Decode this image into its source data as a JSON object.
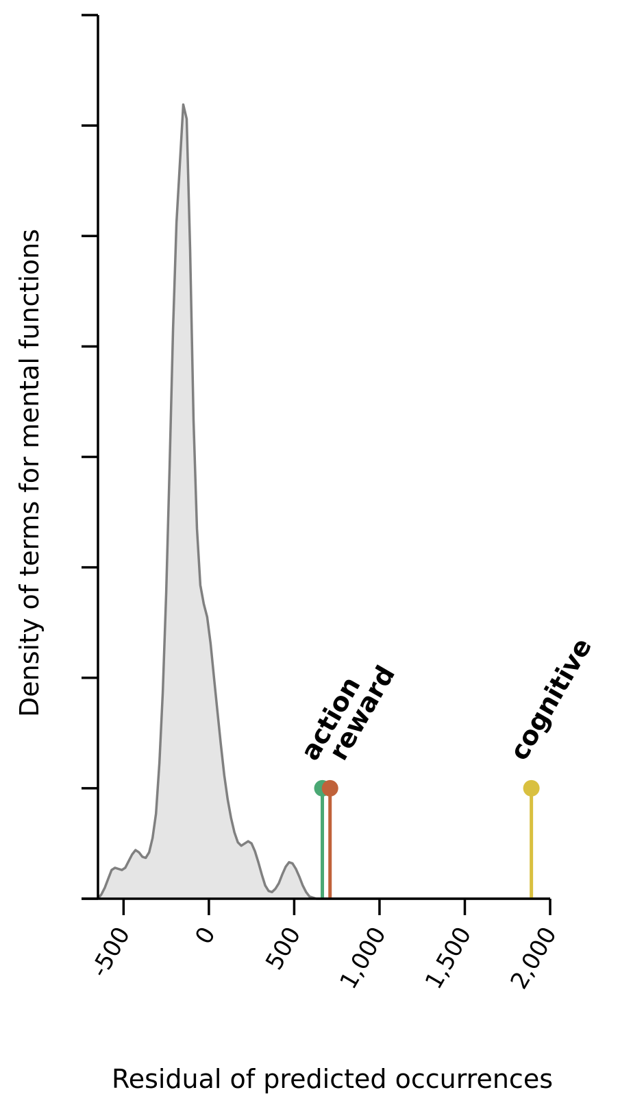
{
  "chart_data": {
    "type": "area",
    "xlabel": "Residual of predicted occurrences",
    "ylabel": "Density of terms for mental functions",
    "xlim": [
      -650,
      2000
    ],
    "ylim": [
      0,
      8
    ],
    "x_ticks": [
      -500,
      0,
      500,
      1000,
      1500,
      2000
    ],
    "x_tick_labels": [
      "-500",
      "0",
      "500",
      "1,000",
      "1,500",
      "2,000"
    ],
    "y_ticks": [
      0,
      1,
      2,
      3,
      4,
      5,
      6,
      7,
      8
    ],
    "grid": false,
    "series": [
      {
        "x": [
          -650,
          -630,
          -610,
          -590,
          -570,
          -550,
          -530,
          -510,
          -490,
          -470,
          -450,
          -430,
          -410,
          -390,
          -370,
          -350,
          -330,
          -310,
          -290,
          -270,
          -250,
          -230,
          -210,
          -190,
          -170,
          -150,
          -130,
          -110,
          -90,
          -70,
          -50,
          -30,
          -10,
          10,
          30,
          50,
          70,
          90,
          110,
          130,
          150,
          170,
          190,
          210,
          230,
          250,
          270,
          290,
          310,
          330,
          350,
          370,
          390,
          410,
          430,
          450,
          470,
          490,
          510,
          530,
          550,
          570,
          590,
          610,
          630,
          650,
          670,
          690,
          710,
          730,
          750,
          770,
          790,
          810,
          850,
          900,
          1000,
          1200,
          1400,
          1600,
          1700,
          1750,
          1790,
          1810,
          1830,
          1850,
          1870,
          1890,
          1910,
          1930,
          1950,
          1970,
          1990,
          2000
        ],
        "y": [
          0.0,
          0.04,
          0.1,
          0.18,
          0.26,
          0.28,
          0.27,
          0.26,
          0.28,
          0.34,
          0.4,
          0.44,
          0.42,
          0.38,
          0.37,
          0.42,
          0.55,
          0.77,
          1.23,
          1.87,
          2.77,
          3.92,
          5.16,
          6.12,
          6.65,
          7.19,
          7.06,
          5.88,
          4.33,
          3.35,
          2.84,
          2.67,
          2.55,
          2.31,
          2.0,
          1.7,
          1.4,
          1.12,
          0.9,
          0.73,
          0.6,
          0.51,
          0.48,
          0.5,
          0.52,
          0.5,
          0.43,
          0.33,
          0.22,
          0.12,
          0.07,
          0.06,
          0.09,
          0.14,
          0.22,
          0.29,
          0.33,
          0.32,
          0.27,
          0.2,
          0.12,
          0.06,
          0.02,
          0.01,
          0.0,
          0.0,
          0.0,
          0.0,
          0.0,
          0.0,
          0.0,
          0.0,
          0.0,
          0.0,
          0.0,
          0.0,
          0.0,
          0.0,
          0.0,
          0.0,
          0.0,
          0.0,
          0.0,
          0.0,
          0.0,
          0.0,
          0.0,
          0.0,
          0.0,
          0.0,
          0.0,
          0.0,
          0.0,
          0.0
        ],
        "color": "#808080",
        "fill": "#e5e5e5"
      }
    ],
    "markers": [
      {
        "label": "action",
        "x": 665,
        "y": 1.0,
        "color": "#4aa874"
      },
      {
        "label": "reward",
        "x": 710,
        "y": 1.0,
        "color": "#c0623a"
      },
      {
        "label": "cognitive",
        "x": 1890,
        "y": 1.0,
        "color": "#d9c040"
      }
    ]
  }
}
